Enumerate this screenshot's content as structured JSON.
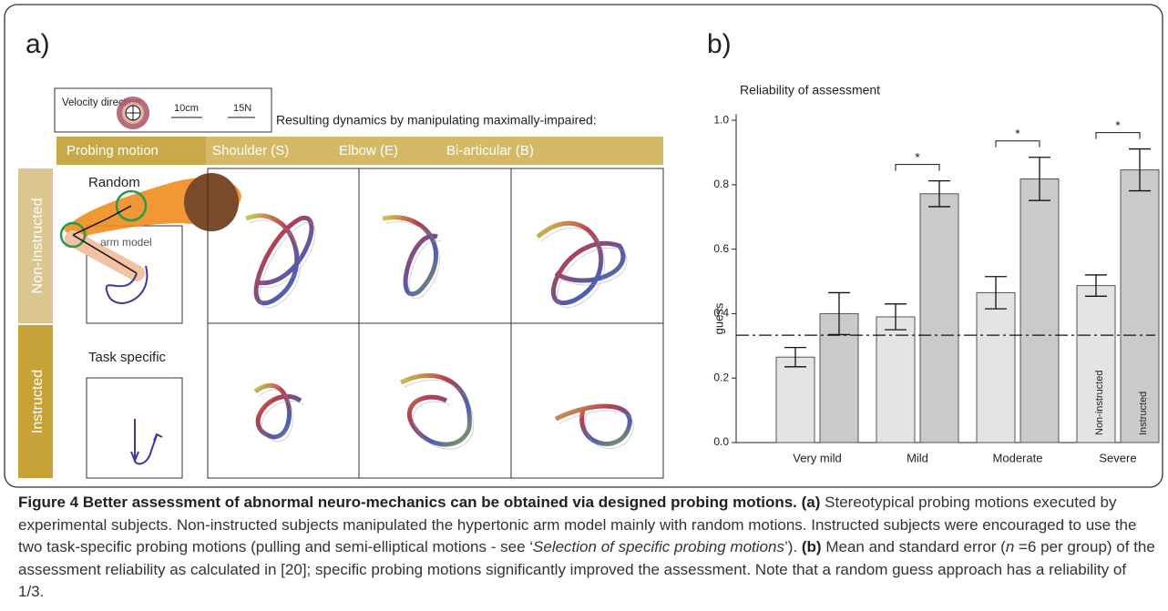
{
  "panel_a": {
    "label": "a)",
    "legend": {
      "velocity": "Velocity direction",
      "length_scale": "10cm",
      "force_scale": "15N"
    },
    "heading": "Resulting dynamics by manipulating maximally-impaired:",
    "columns": [
      "Probing motion",
      "Shoulder (S)",
      "Elbow (E)",
      "Bi-articular (B)"
    ],
    "rows": [
      "Non-Instructed",
      "Instructed"
    ],
    "probes": [
      "Random",
      "Task specific"
    ],
    "arm_label": "arm model"
  },
  "chart_data": {
    "type": "bar",
    "panel_label": "b)",
    "title": "Reliability of assessment",
    "ylabel": "guess",
    "categories": [
      "Very mild",
      "Mild",
      "Moderate",
      "Severe"
    ],
    "series": [
      {
        "name": "Non-instructed",
        "color": "#e3e4e4",
        "values": [
          0.265,
          0.39,
          0.465,
          0.487
        ],
        "errors": [
          0.03,
          0.04,
          0.05,
          0.033
        ]
      },
      {
        "name": "Instructed",
        "color": "#c9caca",
        "values": [
          0.4,
          0.772,
          0.818,
          0.846
        ],
        "errors": [
          0.065,
          0.04,
          0.067,
          0.065
        ]
      }
    ],
    "ylim": [
      0,
      1.02
    ],
    "yticks": [
      {
        "value": 0,
        "label": "0.0"
      },
      0.2,
      0.4,
      0.6,
      0.8,
      {
        "value": 1,
        "label": "1.0"
      }
    ],
    "reference_line": 0.333,
    "significance": [
      null,
      "*",
      "*",
      "*"
    ]
  },
  "caption": [
    "Figure 4 Better assessment of abnormal neuro-mechanics can be obtained via designed probing motions.",
    "(a)",
    "Stereotypical probing motions executed by experimental subjects. Non-instructed subjects manipulated the hypertonic arm model mainly with random motions. Instructed subjects were encouraged to use the two task-specific probing motions (pulling and semi-elliptical motions - see ‘",
    "Selection of specific probing motions",
    "’).",
    "(b)",
    "Mean and standard error (",
    "n",
    "=6 per group) of the assessment reliability as calculated in [20]; specific probing motions significantly improved the assessment. Note that a random guess approach has a reliability of 1/3."
  ]
}
